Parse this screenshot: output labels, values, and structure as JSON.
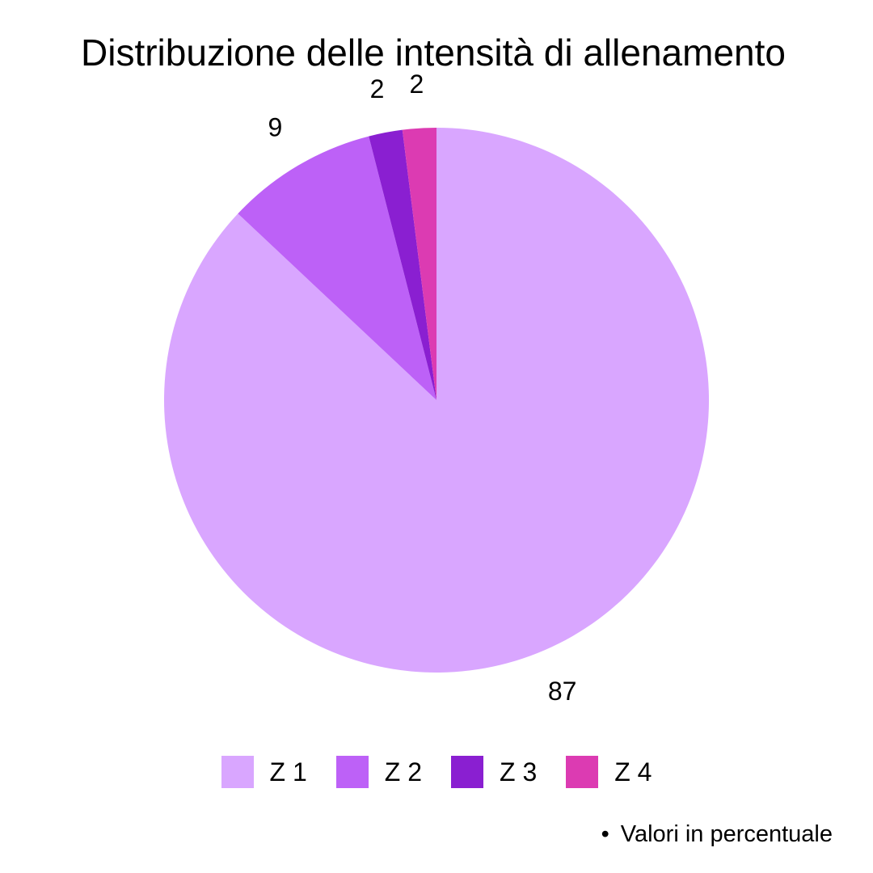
{
  "chart_data": {
    "type": "pie",
    "title": "Distribuzione delle intensità di allenamento",
    "slices": [
      {
        "label": "Z 1",
        "value": 87,
        "color": "#d9a6ff"
      },
      {
        "label": "Z 2",
        "value": 9,
        "color": "#bd61f7"
      },
      {
        "label": "Z 3",
        "value": 2,
        "color": "#8a1fd1"
      },
      {
        "label": "Z 4",
        "value": 2,
        "color": "#dc3bb2"
      }
    ],
    "legend": [
      "Z 1",
      "Z 2",
      "Z 3",
      "Z 4"
    ],
    "legend_position": "bottom",
    "footnote_bullet": "•",
    "footnote": "Valori in percentuale"
  }
}
